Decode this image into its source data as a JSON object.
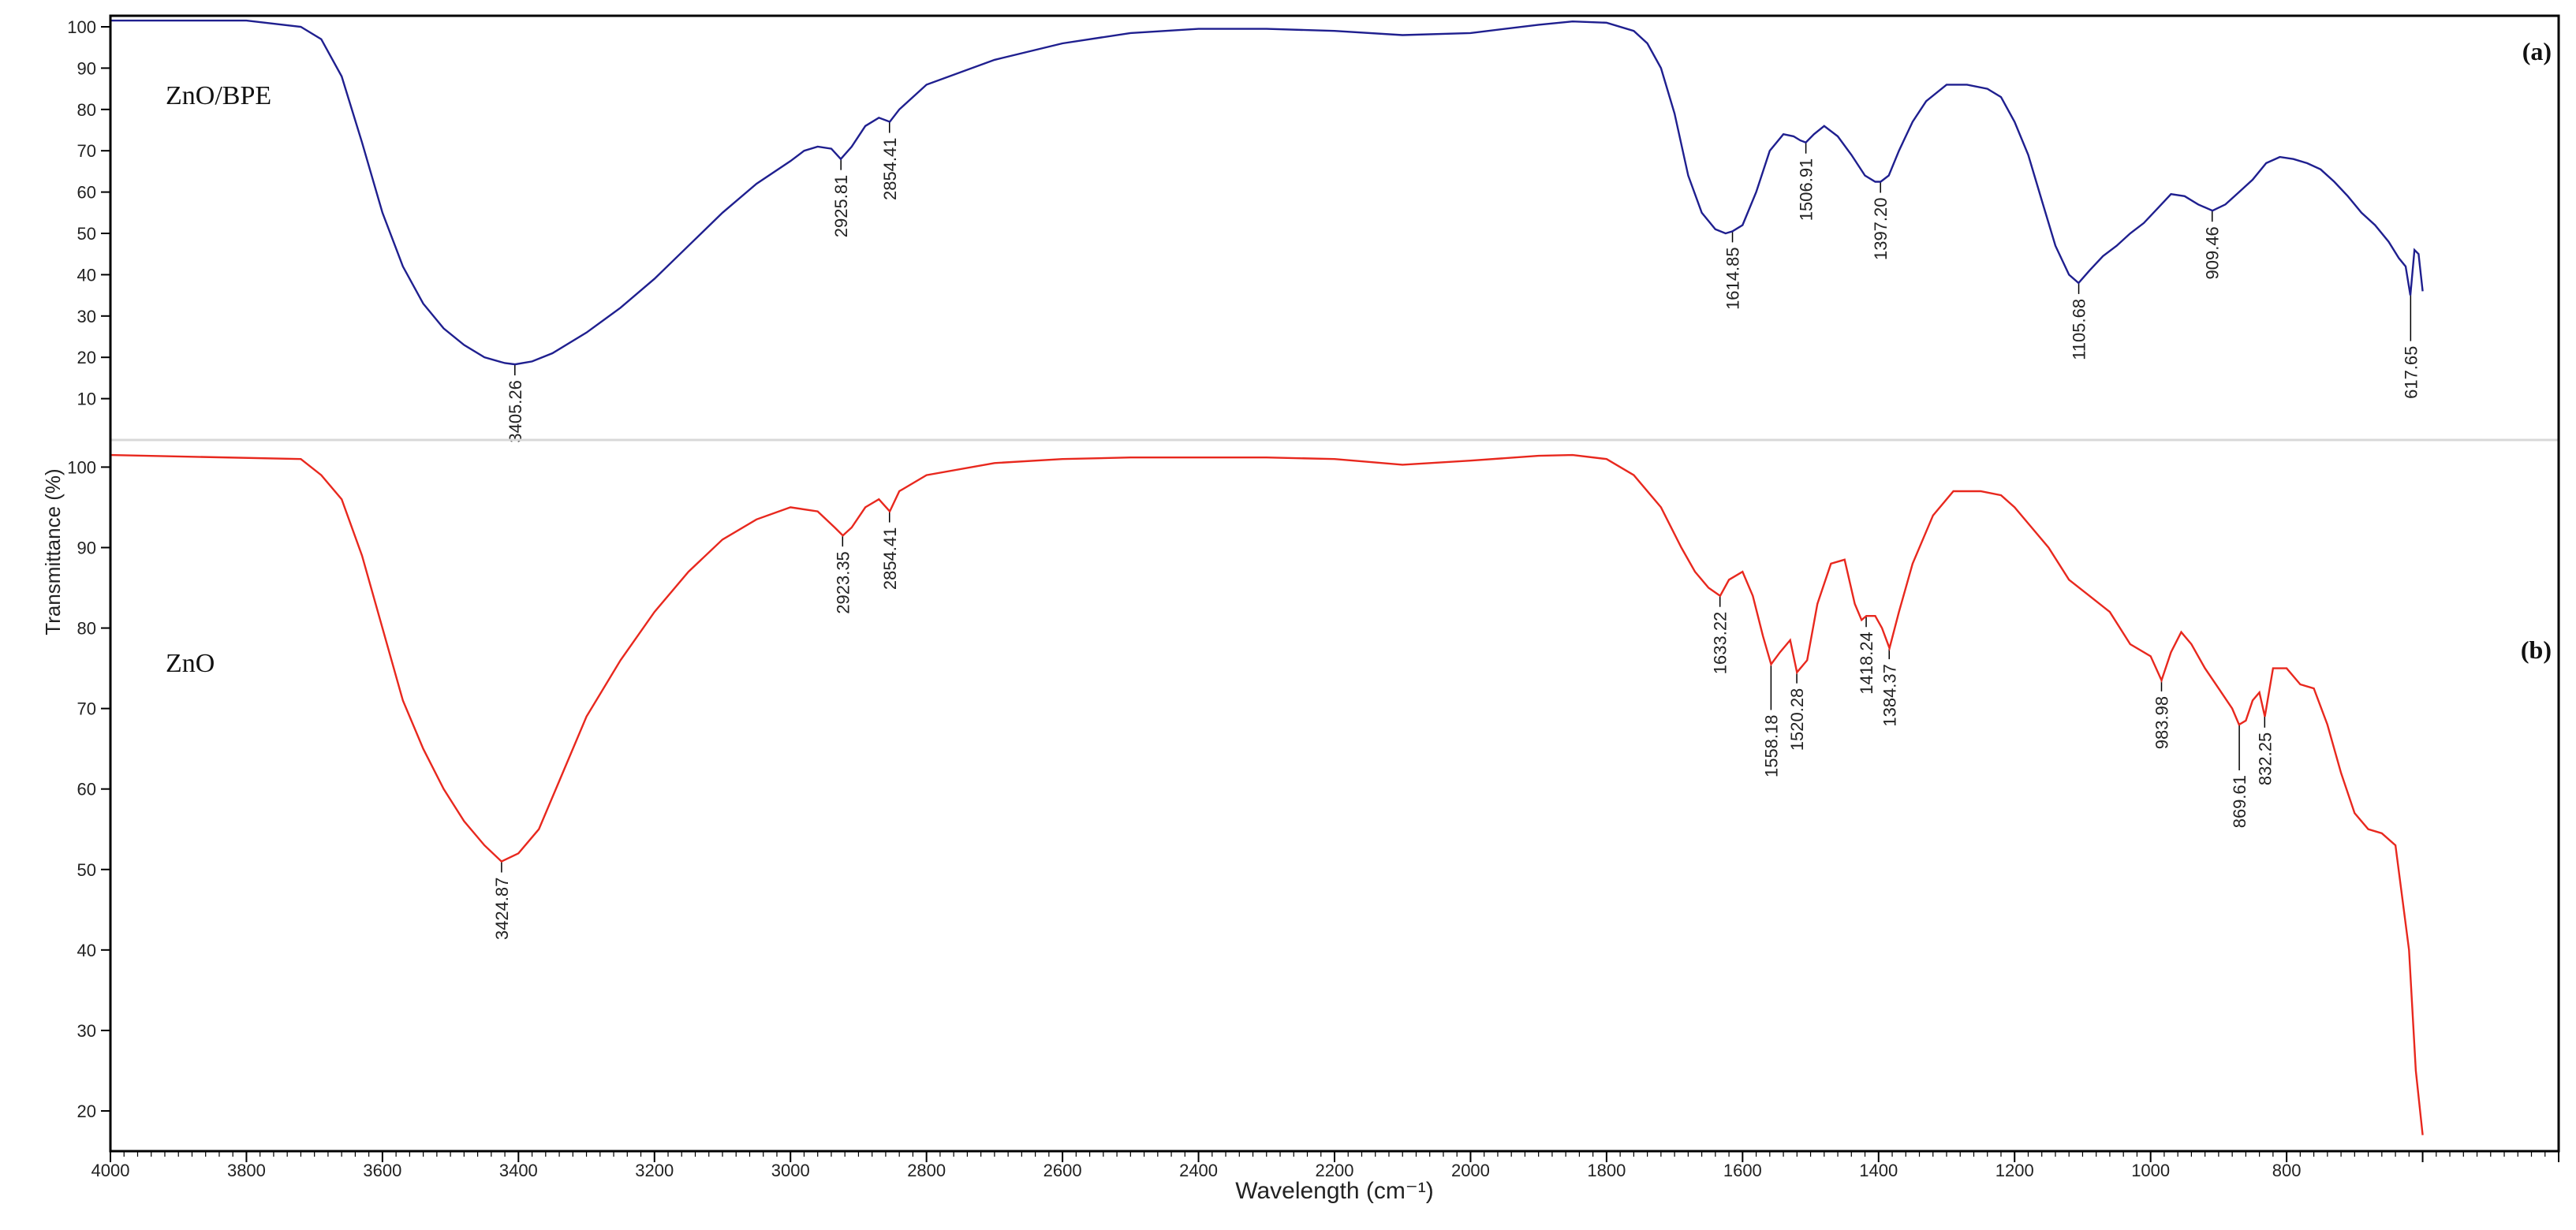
{
  "chart_data": {
    "type": "line",
    "title": "",
    "xlabel": "Wavelength (cm⁻¹)",
    "ylabel": "Transmittance (%)",
    "xlim": [
      4000,
      400
    ],
    "x_reversed": true,
    "grid": false,
    "x_ticks": [
      "4000",
      "3800",
      "3600",
      "3400",
      "3200",
      "3000",
      "2800",
      "2600",
      "2400",
      "2200",
      "2000",
      "1800",
      "1600",
      "1400",
      "1200",
      "1000",
      "800"
    ],
    "panels": [
      {
        "tag": "(a)",
        "name": "ZnO/BPE",
        "color": "#1f1f8f",
        "ylim": [
          0,
          100
        ],
        "y_ticks": [
          "10",
          "20",
          "30",
          "40",
          "50",
          "60",
          "70",
          "80",
          "90",
          "100"
        ],
        "x": [
          4000,
          3800,
          3720,
          3690,
          3660,
          3630,
          3600,
          3570,
          3540,
          3510,
          3480,
          3450,
          3420,
          3405,
          3380,
          3350,
          3300,
          3250,
          3200,
          3150,
          3100,
          3050,
          3000,
          2980,
          2960,
          2940,
          2926,
          2910,
          2890,
          2870,
          2854,
          2840,
          2800,
          2700,
          2600,
          2500,
          2400,
          2300,
          2200,
          2100,
          2000,
          1900,
          1850,
          1800,
          1760,
          1740,
          1720,
          1700,
          1680,
          1660,
          1640,
          1625,
          1615,
          1600,
          1580,
          1560,
          1540,
          1525,
          1515,
          1507,
          1495,
          1480,
          1460,
          1440,
          1420,
          1405,
          1397,
          1385,
          1370,
          1350,
          1330,
          1300,
          1270,
          1240,
          1220,
          1200,
          1180,
          1160,
          1140,
          1120,
          1106,
          1090,
          1070,
          1050,
          1030,
          1010,
          990,
          970,
          950,
          930,
          909,
          890,
          870,
          850,
          830,
          810,
          790,
          770,
          750,
          730,
          710,
          690,
          670,
          650,
          635,
          625,
          618,
          612,
          606,
          600
        ],
        "y": [
          101.5,
          101.5,
          100,
          97,
          88,
          72,
          55,
          42,
          33,
          27,
          23,
          20,
          18.6,
          18.3,
          19,
          21,
          26,
          32,
          39,
          47,
          55,
          62,
          67.5,
          70,
          71,
          70.5,
          68,
          71,
          76,
          78,
          77,
          80,
          86,
          92,
          96,
          98.5,
          99.5,
          99.5,
          99,
          98,
          98.5,
          100.5,
          101.3,
          101,
          99,
          96,
          90,
          79,
          64,
          55,
          51,
          50,
          50.5,
          52,
          60,
          70,
          74,
          73.5,
          72.5,
          72,
          74,
          76,
          73.5,
          69,
          64,
          62.5,
          62.5,
          64,
          70,
          77,
          82,
          86,
          86,
          85,
          83,
          77,
          69,
          58,
          47,
          40,
          38,
          41,
          44.5,
          47,
          50,
          52.5,
          56,
          59.5,
          59,
          57,
          55.5,
          57,
          60,
          63,
          67,
          68.5,
          68,
          67,
          65.5,
          62.5,
          59,
          55,
          52,
          48,
          44,
          42,
          35,
          46,
          45,
          36
        ],
        "peaks": [
          {
            "label": "3405.26",
            "x": 3405.26,
            "y": 18.3
          },
          {
            "label": "2925.81",
            "x": 2925.81,
            "y": 68
          },
          {
            "label": "2854.41",
            "x": 2854.41,
            "y": 77
          },
          {
            "label": "1614.85",
            "x": 1614.85,
            "y": 50.5
          },
          {
            "label": "1506.91",
            "x": 1506.91,
            "y": 72
          },
          {
            "label": "1397.20",
            "x": 1397.2,
            "y": 62.5
          },
          {
            "label": "1105.68",
            "x": 1105.68,
            "y": 38
          },
          {
            "label": "909.46",
            "x": 909.46,
            "y": 55.5
          },
          {
            "label": "617.65",
            "x": 617.65,
            "y": 35
          }
        ]
      },
      {
        "tag": "(b)",
        "name": "ZnO",
        "color": "#e8281e",
        "ylim": [
          15,
          102
        ],
        "y_ticks": [
          "20",
          "30",
          "40",
          "50",
          "60",
          "70",
          "80",
          "90",
          "100"
        ],
        "x": [
          4000,
          3720,
          3690,
          3660,
          3630,
          3600,
          3570,
          3540,
          3510,
          3480,
          3450,
          3425,
          3400,
          3370,
          3340,
          3300,
          3250,
          3200,
          3150,
          3100,
          3050,
          3000,
          2960,
          2935,
          2923,
          2910,
          2890,
          2870,
          2854,
          2840,
          2800,
          2700,
          2600,
          2500,
          2400,
          2300,
          2200,
          2100,
          2000,
          1900,
          1850,
          1800,
          1760,
          1720,
          1690,
          1670,
          1650,
          1633,
          1620,
          1600,
          1585,
          1570,
          1558,
          1545,
          1530,
          1520,
          1505,
          1490,
          1470,
          1450,
          1435,
          1425,
          1418,
          1405,
          1395,
          1384,
          1370,
          1350,
          1320,
          1290,
          1270,
          1250,
          1220,
          1200,
          1180,
          1150,
          1120,
          1090,
          1060,
          1030,
          1000,
          984,
          970,
          955,
          940,
          920,
          900,
          880,
          870,
          860,
          850,
          840,
          832,
          820,
          800,
          780,
          760,
          740,
          720,
          700,
          680,
          660,
          640,
          620,
          610,
          600
        ],
        "y": [
          101.5,
          101,
          99,
          96,
          89,
          80,
          71,
          65,
          60,
          56,
          53,
          51,
          52,
          55,
          61,
          69,
          76,
          82,
          87,
          91,
          93.5,
          95,
          94.5,
          92.5,
          91.5,
          92.5,
          95,
          96,
          94.5,
          97,
          99,
          100.5,
          101,
          101.2,
          101.2,
          101.2,
          101,
          100.3,
          100.8,
          101.4,
          101.5,
          101,
          99,
          95,
          90,
          87,
          85,
          84,
          86,
          87,
          84,
          79,
          75.5,
          77,
          78.5,
          74.5,
          76,
          83,
          88,
          88.5,
          83,
          81,
          81.5,
          81.5,
          80,
          77.5,
          82,
          88,
          94,
          97,
          97,
          97,
          96.5,
          95,
          93,
          90,
          86,
          84,
          82,
          78,
          76.5,
          73.5,
          77,
          79.5,
          78,
          75,
          72.5,
          70,
          68,
          68.5,
          71,
          72,
          69,
          75,
          75,
          73,
          72.5,
          68,
          62,
          57,
          55,
          54.5,
          53,
          40,
          25,
          17
        ],
        "peaks": [
          {
            "label": "3424.87",
            "x": 3424.87,
            "y": 51
          },
          {
            "label": "2923.35",
            "x": 2923.35,
            "y": 91.5
          },
          {
            "label": "2854.41",
            "x": 2854.41,
            "y": 94.5
          },
          {
            "label": "1633.22",
            "x": 1633.22,
            "y": 84
          },
          {
            "label": "1558.18",
            "x": 1558.18,
            "y": 75.5
          },
          {
            "label": "1520.28",
            "x": 1520.28,
            "y": 74.5
          },
          {
            "label": "1418.24",
            "x": 1418.24,
            "y": 81.5
          },
          {
            "label": "1384.37",
            "x": 1384.37,
            "y": 77.5
          },
          {
            "label": "983.98",
            "x": 983.98,
            "y": 73.5
          },
          {
            "label": "869.61",
            "x": 869.61,
            "y": 68
          },
          {
            "label": "832.25",
            "x": 832.25,
            "y": 69
          }
        ]
      }
    ]
  }
}
